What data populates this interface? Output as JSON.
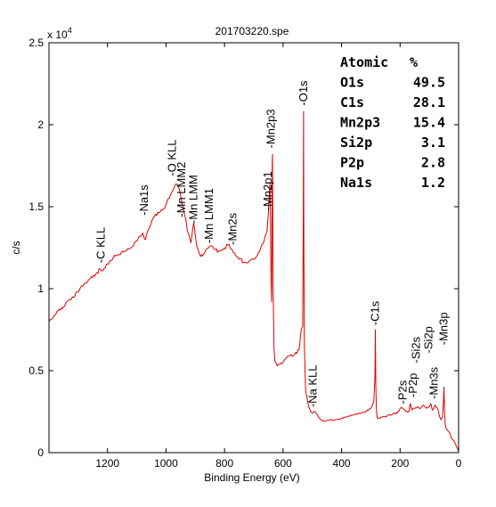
{
  "chart_data": {
    "type": "line",
    "title": "201703220.spe",
    "xlabel": "Binding Energy (eV)",
    "ylabel": "c/s",
    "xlim": [
      1400,
      0
    ],
    "ylim": [
      0,
      25000
    ],
    "x_reversed": true,
    "y_exponent_label": "x 10",
    "y_exponent_power": "4",
    "x_ticks": [
      {
        "value": 1200,
        "label": "1200"
      },
      {
        "value": 1000,
        "label": "1000"
      },
      {
        "value": 800,
        "label": "800"
      },
      {
        "value": 600,
        "label": "600"
      },
      {
        "value": 400,
        "label": "400"
      },
      {
        "value": 200,
        "label": "200"
      },
      {
        "value": 0,
        "label": "0"
      }
    ],
    "y_ticks": [
      {
        "value": 0,
        "label": "0"
      },
      {
        "value": 5000,
        "label": "0.5"
      },
      {
        "value": 10000,
        "label": "1"
      },
      {
        "value": 15000,
        "label": "1.5"
      },
      {
        "value": 20000,
        "label": "2"
      },
      {
        "value": 25000,
        "label": "2.5"
      }
    ],
    "grid": false,
    "series": [
      {
        "color": "#e00000",
        "x": [
          1400,
          1380,
          1350,
          1320,
          1300,
          1280,
          1260,
          1240,
          1225,
          1215,
          1200,
          1180,
          1160,
          1140,
          1120,
          1100,
          1080,
          1070,
          1060,
          1040,
          1020,
          1000,
          985,
          975,
          965,
          955,
          945,
          935,
          925,
          915,
          905,
          895,
          885,
          875,
          865,
          855,
          845,
          835,
          820,
          800,
          785,
          770,
          750,
          730,
          700,
          680,
          665,
          655,
          650,
          647,
          645,
          643,
          641,
          639,
          637,
          636,
          634,
          631,
          628,
          620,
          600,
          580,
          560,
          545,
          538,
          533,
          531,
          530,
          529,
          527,
          523,
          515,
          505,
          500,
          495,
          490,
          480,
          470,
          460,
          440,
          420,
          400,
          380,
          360,
          340,
          320,
          300,
          290,
          286,
          284.5,
          283,
          281,
          278,
          270,
          260,
          250,
          240,
          230,
          220,
          210,
          200,
          190,
          180,
          170,
          165,
          160,
          150,
          140,
          130,
          120,
          110,
          100,
          95,
          90,
          85,
          80,
          70,
          65,
          60,
          55,
          52,
          50,
          48,
          45,
          40,
          35,
          30,
          25,
          20,
          15,
          10,
          5,
          0
        ],
        "y": [
          8000,
          8400,
          8900,
          9500,
          9800,
          10300,
          10600,
          10900,
          11200,
          11100,
          11500,
          11900,
          12100,
          12300,
          12500,
          12900,
          13400,
          13000,
          13600,
          14400,
          14700,
          15100,
          15700,
          16000,
          16400,
          16100,
          15200,
          14400,
          13400,
          12800,
          14000,
          12600,
          12100,
          12000,
          12300,
          12500,
          12600,
          12400,
          12300,
          12500,
          12700,
          12200,
          11800,
          11600,
          11800,
          12300,
          12900,
          13500,
          14600,
          15700,
          16400,
          14500,
          10500,
          9200,
          17500,
          18200,
          10000,
          6400,
          5600,
          5300,
          5500,
          5900,
          6000,
          6300,
          7500,
          7700,
          13500,
          20800,
          13000,
          6500,
          3800,
          3000,
          2500,
          2400,
          2500,
          2500,
          2200,
          2000,
          1900,
          2000,
          2000,
          2100,
          2200,
          2300,
          2400,
          2500,
          2700,
          3100,
          4500,
          7500,
          4200,
          2600,
          2100,
          2100,
          2200,
          2200,
          2300,
          2300,
          2400,
          2400,
          2700,
          2700,
          2500,
          2500,
          3000,
          2600,
          2700,
          2800,
          2700,
          2900,
          2700,
          2800,
          3000,
          2600,
          2700,
          2900,
          2600,
          2200,
          2000,
          2200,
          3000,
          4000,
          2500,
          1600,
          1400,
          1300,
          1200,
          900,
          800,
          700,
          500,
          300,
          100
        ]
      }
    ],
    "annotations": [
      {
        "x": 1222,
        "y": 11400,
        "text": "-C KLL"
      },
      {
        "x": 1074,
        "y": 14300,
        "text": "-Na1s"
      },
      {
        "x": 978,
        "y": 16700,
        "text": "-O KLL"
      },
      {
        "x": 946,
        "y": 14200,
        "text": "-Mn LMM2"
      },
      {
        "x": 905,
        "y": 13800,
        "text": "-Mn LMM"
      },
      {
        "x": 852,
        "y": 12600,
        "text": "-Mn LMM1"
      },
      {
        "x": 772,
        "y": 12500,
        "text": "-Mn2s"
      },
      {
        "x": 652,
        "y": 14600,
        "text": "-Mn2p1"
      },
      {
        "x": 640,
        "y": 18400,
        "text": "-Mn2p3"
      },
      {
        "x": 530,
        "y": 21000,
        "text": "-O1s"
      },
      {
        "x": 497,
        "y": 2600,
        "text": "-Na KLL"
      },
      {
        "x": 284.5,
        "y": 7600,
        "text": "-C1s"
      },
      {
        "x": 190,
        "y": 2800,
        "text": "-P2s"
      },
      {
        "x": 155,
        "y": 3200,
        "text": "-P2p"
      },
      {
        "x": 145,
        "y": 5300,
        "text": "-Si2s"
      },
      {
        "x": 102,
        "y": 5900,
        "text": "-Si2p"
      },
      {
        "x": 84,
        "y": 3100,
        "text": "-Mn3s"
      },
      {
        "x": 50,
        "y": 6400,
        "text": "-Mn3p"
      }
    ],
    "atomic_table": {
      "header_name": "Atomic",
      "header_unit": "%",
      "rows": [
        {
          "name": "O1s",
          "value": "49.5"
        },
        {
          "name": "C1s",
          "value": "28.1"
        },
        {
          "name": "Mn2p3",
          "value": "15.4"
        },
        {
          "name": "Si2p",
          "value": "3.1"
        },
        {
          "name": "P2p",
          "value": "2.8"
        },
        {
          "name": "Na1s",
          "value": "1.2"
        }
      ]
    }
  }
}
